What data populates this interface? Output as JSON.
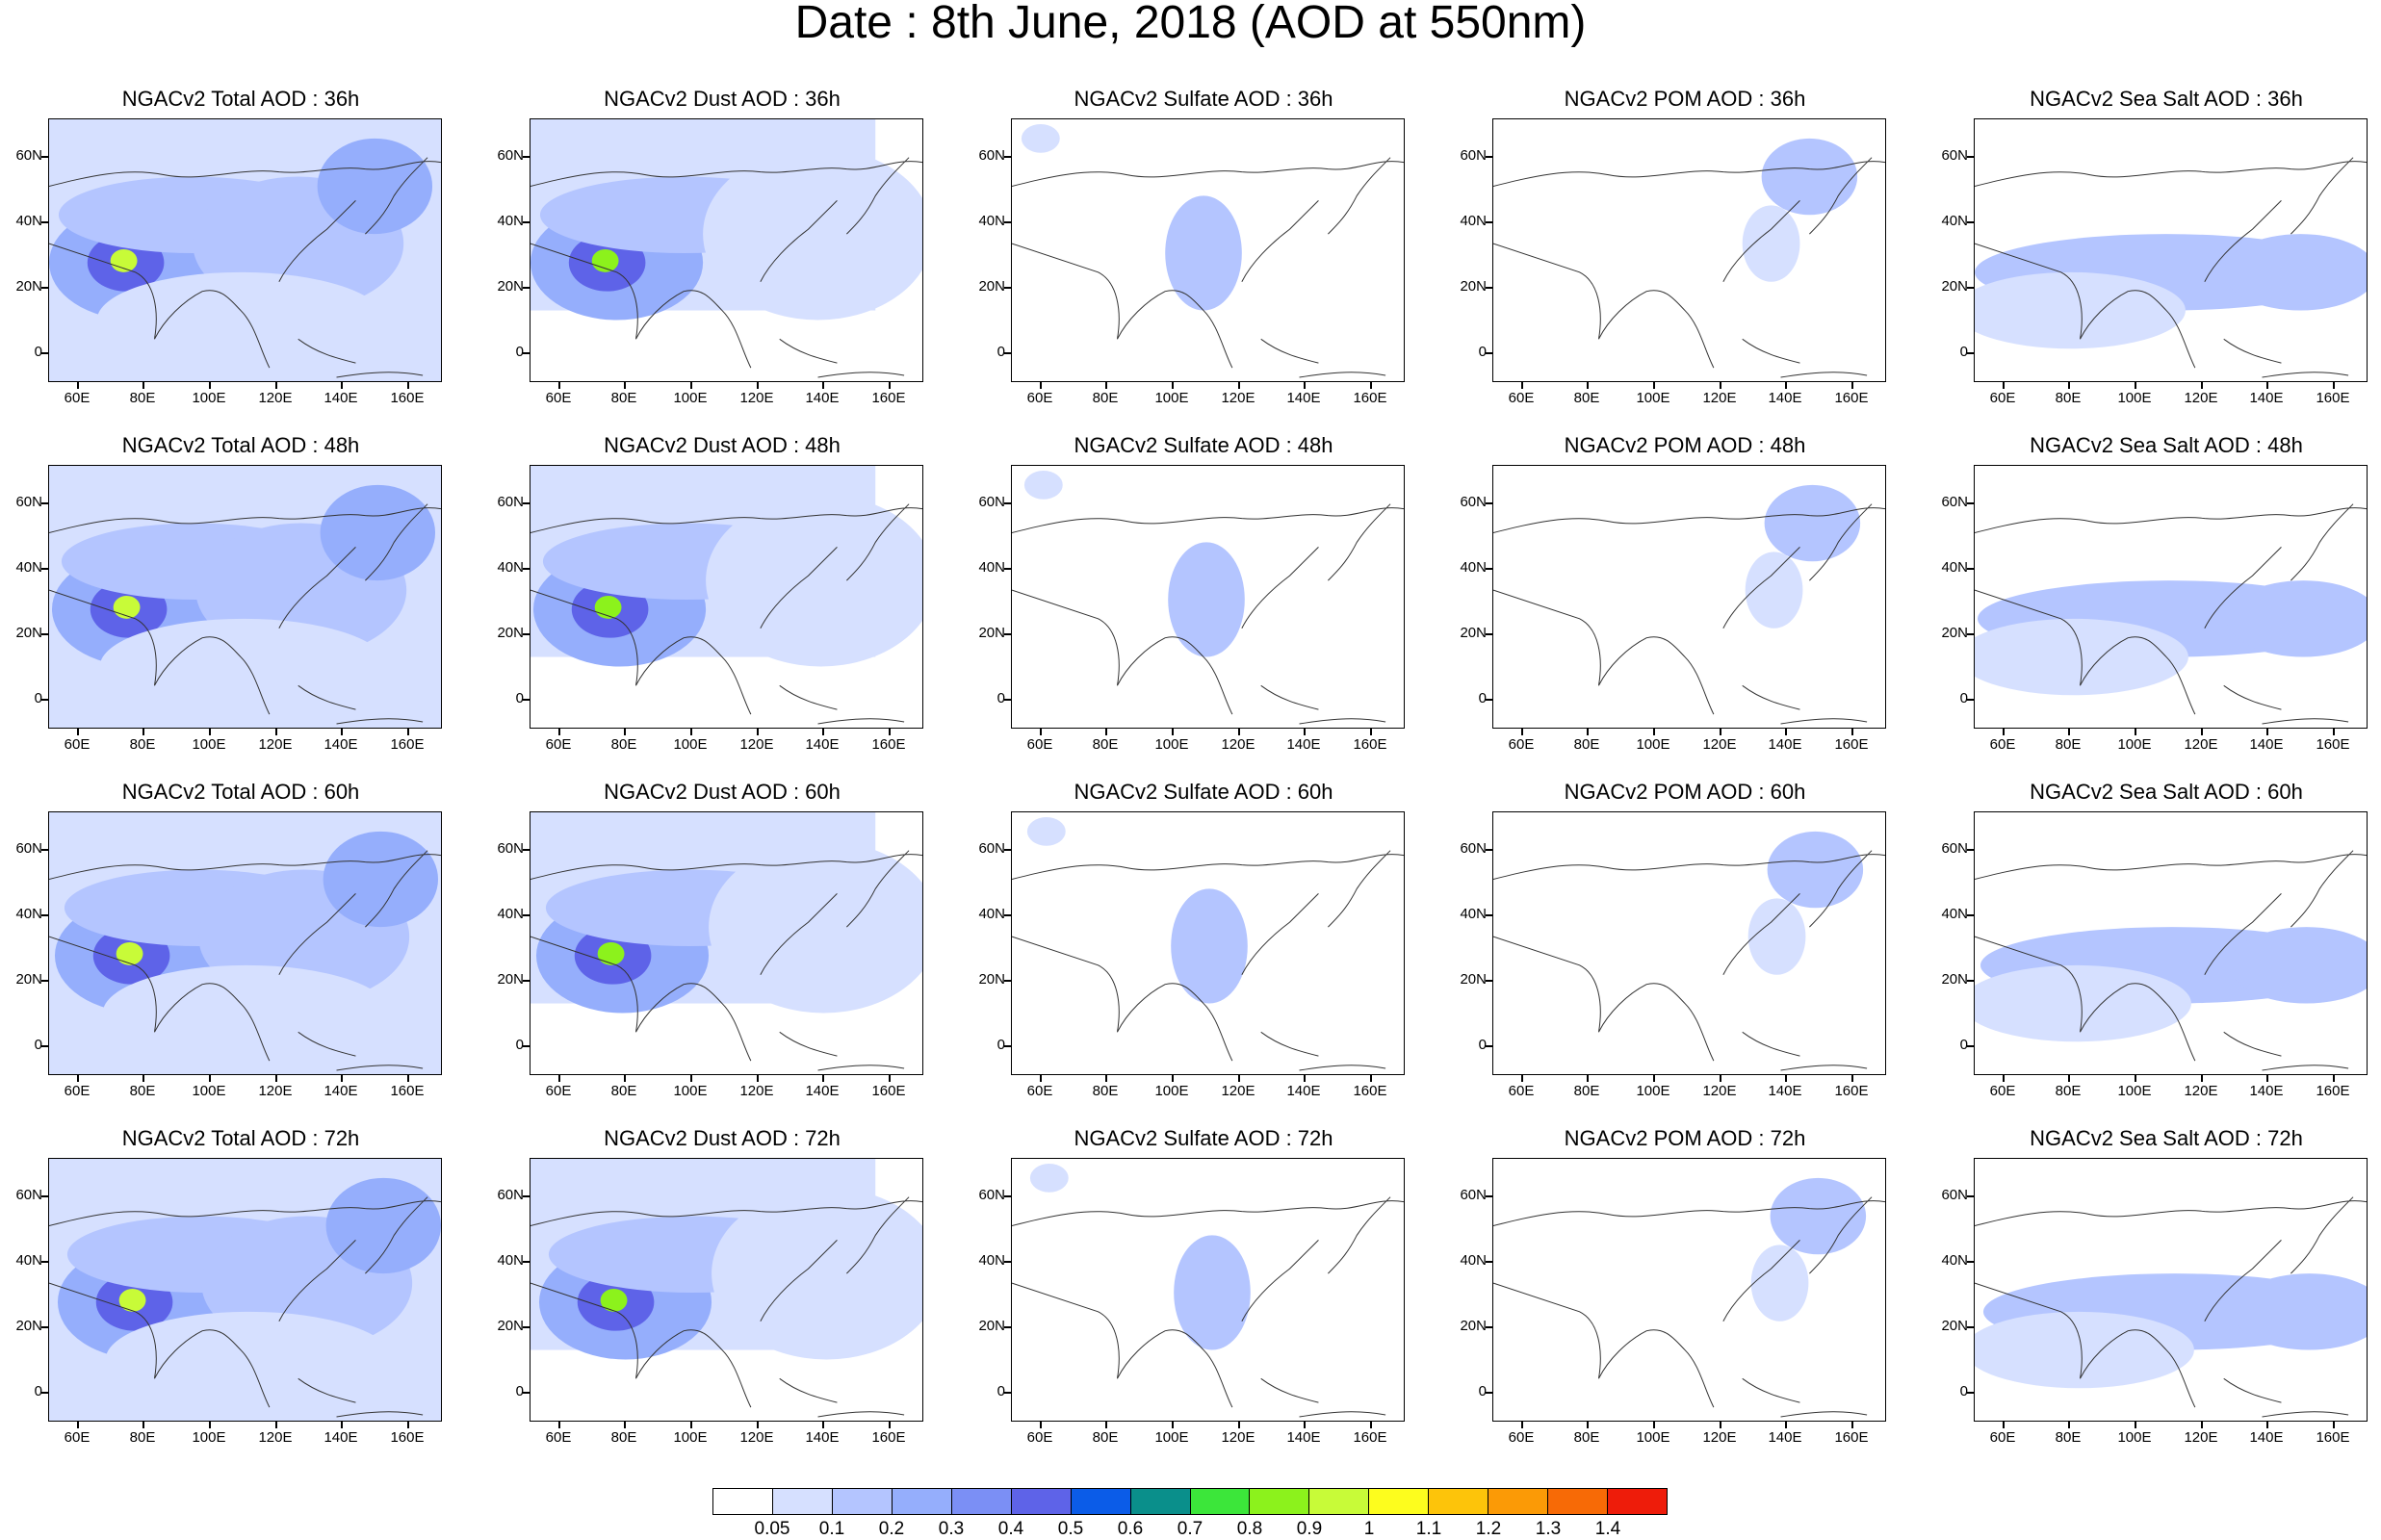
{
  "title": "Date : 8th June, 2018 (AOD at 550nm)",
  "columns": [
    "Total",
    "Dust",
    "Sulfate",
    "POM",
    "Sea Salt"
  ],
  "rows": [
    "36h",
    "48h",
    "60h",
    "72h"
  ],
  "panels": [
    [
      "NGACv2 Total AOD : 36h",
      "NGACv2 Dust AOD : 36h",
      "NGACv2 Sulfate AOD : 36h",
      "NGACv2 POM AOD : 36h",
      "NGACv2 Sea Salt AOD : 36h"
    ],
    [
      "NGACv2 Total AOD : 48h",
      "NGACv2 Dust AOD : 48h",
      "NGACv2 Sulfate AOD : 48h",
      "NGACv2 POM AOD : 48h",
      "NGACv2 Sea Salt AOD : 48h"
    ],
    [
      "NGACv2 Total AOD : 60h",
      "NGACv2 Dust AOD : 60h",
      "NGACv2 Sulfate AOD : 60h",
      "NGACv2 POM AOD : 60h",
      "NGACv2 Sea Salt AOD : 60h"
    ],
    [
      "NGACv2 Total AOD : 72h",
      "NGACv2 Dust AOD : 72h",
      "NGACv2 Sulfate AOD : 72h",
      "NGACv2 POM AOD : 72h",
      "NGACv2 Sea Salt  AOD : 72h"
    ]
  ],
  "lat_labels": [
    "60N",
    "40N",
    "20N",
    "0"
  ],
  "lon_labels": [
    "60E",
    "80E",
    "100E",
    "120E",
    "140E",
    "160E"
  ],
  "legend": {
    "labels": [
      "0.05",
      "0.1",
      "0.2",
      "0.3",
      "0.4",
      "0.5",
      "0.6",
      "0.7",
      "0.8",
      "0.9",
      "1",
      "1.1",
      "1.2",
      "1.3",
      "1.4"
    ],
    "colors": [
      "#ffffff",
      "#d6e0ff",
      "#b4c5ff",
      "#95aefc",
      "#7b8ff5",
      "#5e63e8",
      "#0b5ce8",
      "#0a8f8b",
      "#3ce63a",
      "#8cf21c",
      "#c8fb38",
      "#fdfd1e",
      "#fdc40a",
      "#fb9a06",
      "#f76a06",
      "#ee1c0a"
    ]
  }
}
